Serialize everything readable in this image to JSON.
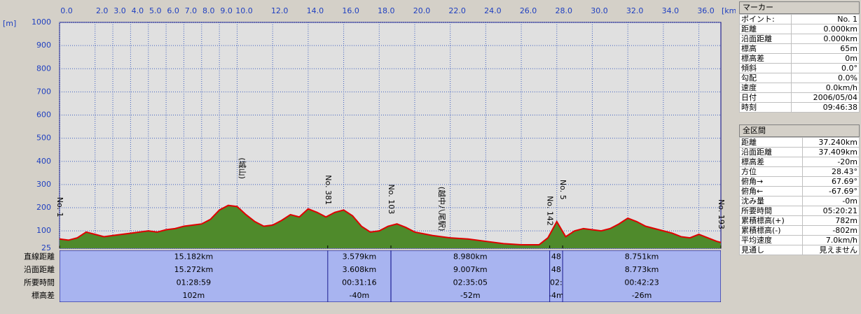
{
  "chart_data": {
    "type": "area",
    "y_unit": "[m]",
    "x_unit": "[km]",
    "x": [
      0,
      0.5,
      1,
      1.5,
      2,
      2.5,
      3,
      3.5,
      4,
      4.5,
      5,
      5.5,
      6,
      6.5,
      7,
      7.5,
      8,
      8.5,
      9,
      9.5,
      10,
      10.5,
      11,
      11.5,
      12,
      12.5,
      13,
      13.5,
      14,
      14.5,
      15,
      15.5,
      16,
      16.5,
      17,
      17.5,
      18,
      18.5,
      19,
      19.5,
      20,
      21,
      22,
      23,
      24,
      25,
      26,
      27,
      27.5,
      28,
      28.5,
      29,
      29.5,
      30,
      30.5,
      31,
      31.5,
      32,
      32.5,
      33,
      34,
      34.5,
      35,
      35.5,
      36,
      36.5,
      37,
      37.24
    ],
    "values": [
      65,
      60,
      70,
      95,
      85,
      75,
      80,
      85,
      90,
      95,
      100,
      95,
      105,
      110,
      120,
      125,
      130,
      150,
      190,
      210,
      205,
      170,
      140,
      120,
      125,
      145,
      170,
      160,
      195,
      180,
      160,
      180,
      190,
      165,
      120,
      95,
      100,
      120,
      130,
      115,
      95,
      80,
      70,
      65,
      55,
      45,
      40,
      40,
      70,
      140,
      75,
      100,
      110,
      105,
      100,
      110,
      130,
      155,
      140,
      120,
      100,
      90,
      75,
      70,
      85,
      70,
      55,
      50
    ],
    "fill_color": "#4f8a2b",
    "line_color": "#e00000",
    "xlim": [
      0,
      37.24
    ],
    "ylim": [
      25,
      1000
    ],
    "xticks": [
      {
        "value": 0,
        "label": "0.0"
      },
      {
        "value": 2,
        "label": "2.0"
      },
      {
        "value": 3,
        "label": "3.0"
      },
      {
        "value": 4,
        "label": "4.0"
      },
      {
        "value": 5,
        "label": "5.0"
      },
      {
        "value": 6,
        "label": "6.0"
      },
      {
        "value": 7,
        "label": "7.0"
      },
      {
        "value": 8,
        "label": "8.0"
      },
      {
        "value": 9,
        "label": "9.0"
      },
      {
        "value": 10,
        "label": "10.0"
      },
      {
        "value": 12,
        "label": "12.0"
      },
      {
        "value": 14,
        "label": "14.0"
      },
      {
        "value": 16,
        "label": "16.0"
      },
      {
        "value": 18,
        "label": "18.0"
      },
      {
        "value": 20,
        "label": "20.0"
      },
      {
        "value": 22,
        "label": "22.0"
      },
      {
        "value": 24,
        "label": "24.0"
      },
      {
        "value": 26,
        "label": "26.0"
      },
      {
        "value": 28,
        "label": "28.0"
      },
      {
        "value": 30,
        "label": "30.0"
      },
      {
        "value": 32,
        "label": "32.0"
      },
      {
        "value": 34,
        "label": "34.0"
      },
      {
        "value": 36,
        "label": "36.0"
      }
    ],
    "yticks": [
      25,
      100,
      200,
      300,
      400,
      500,
      600,
      700,
      800,
      900,
      1000
    ],
    "grid": true,
    "markers": [
      {
        "label": "No. 1",
        "x": 0
      },
      {
        "label": "No. 381",
        "x": 15.1
      },
      {
        "label": "No. 103",
        "x": 18.66
      },
      {
        "label": "No. 142",
        "x": 27.6
      },
      {
        "label": "No. 5",
        "x": 28.33
      },
      {
        "label": "No. 193",
        "x": 37.24
      }
    ],
    "landmarks": [
      {
        "label": "(城山)",
        "x": 10.25
      },
      {
        "label": "(越中八尾駅)",
        "x": 21.5
      }
    ]
  },
  "segments": {
    "row_labels": [
      "直線距離",
      "沿面距離",
      "所要時間",
      "標高差"
    ],
    "columns": [
      [
        "15.182km",
        "15.272km",
        "01:28:59",
        "102m"
      ],
      [
        "3.579km",
        "3.608km",
        "00:31:16",
        "-40m"
      ],
      [
        "8.980km",
        "9.007km",
        "02:35:05",
        "-52m"
      ],
      [
        "48",
        "48",
        "02:",
        "-4m"
      ],
      [
        "8.751km",
        "8.773km",
        "00:42:23",
        "-26m"
      ]
    ]
  },
  "marker_panel": {
    "title": "マーカー",
    "rows": [
      [
        "ポイント:",
        "No. 1"
      ],
      [
        "距離",
        "0.000km"
      ],
      [
        "沿面距離",
        "0.000km"
      ],
      [
        "標高",
        "65m"
      ],
      [
        "標高差",
        "0m"
      ],
      [
        "傾斜",
        "0.0°"
      ],
      [
        "勾配",
        "0.0%"
      ],
      [
        "速度",
        "0.0km/h"
      ],
      [
        "日付",
        "2006/05/04"
      ],
      [
        "時刻",
        "09:46:38"
      ]
    ]
  },
  "total_panel": {
    "title": "全区間",
    "rows": [
      [
        "距離",
        "37.240km"
      ],
      [
        "沿面距離",
        "37.409km"
      ],
      [
        "標高差",
        "-20m"
      ],
      [
        "方位",
        "28.43°"
      ],
      [
        "俯角→",
        "67.69°"
      ],
      [
        "俯角←",
        "-67.69°"
      ],
      [
        "沈み量",
        "-0m"
      ],
      [
        "所要時間",
        "05:20:21"
      ],
      [
        "累積標高(+)",
        "782m"
      ],
      [
        "累積標高(-)",
        "-802m"
      ],
      [
        "平均速度",
        "7.0km/h"
      ],
      [
        "見通し",
        "見えません"
      ]
    ]
  }
}
